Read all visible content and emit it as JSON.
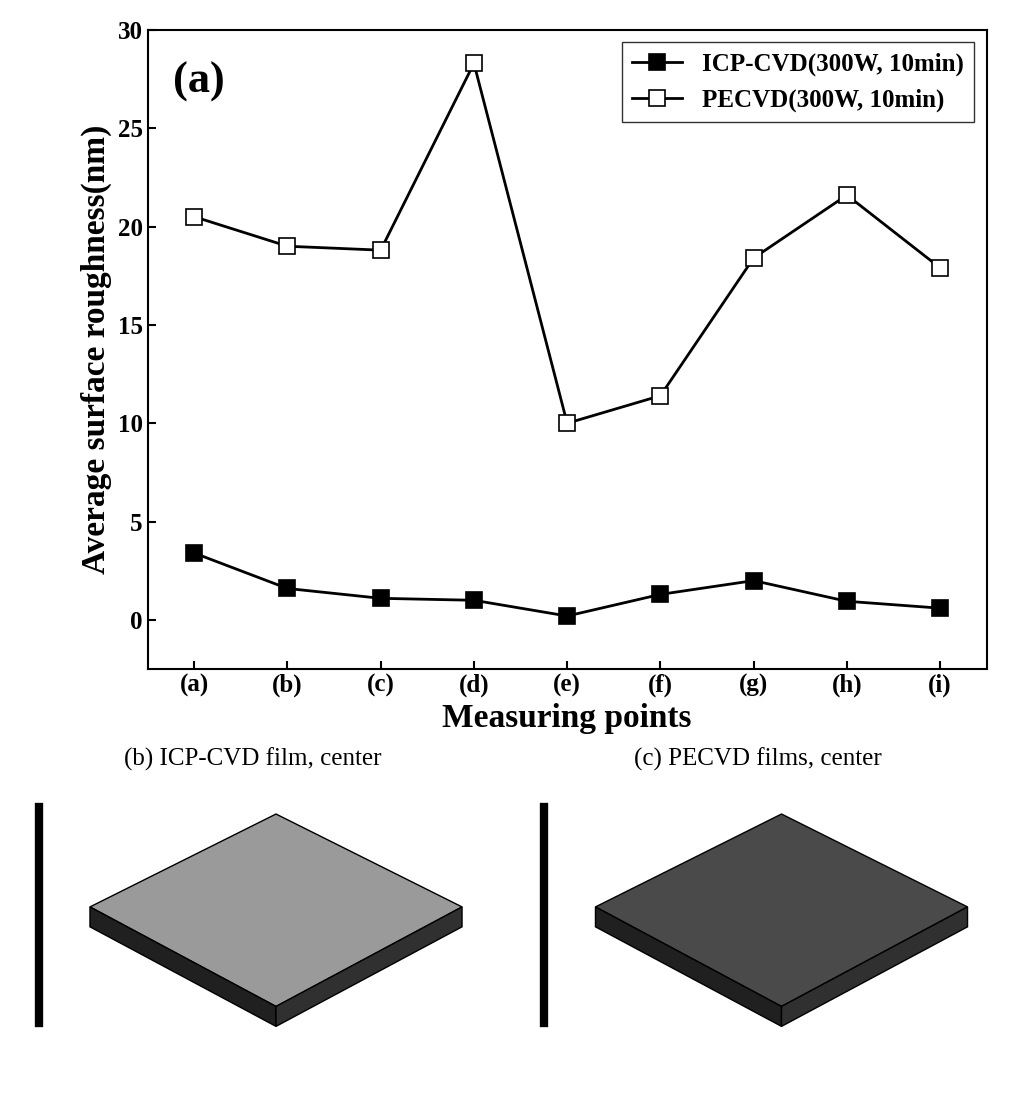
{
  "chart_data": [
    {
      "type": "line",
      "title": "(a)",
      "x_label": "Measuring points",
      "y_label": "Average surface roughness(nm)",
      "categories": [
        "(a)",
        "(b)",
        "(c)",
        "(d)",
        "(e)",
        "(f)",
        "(g)",
        "(h)",
        "(i)"
      ],
      "series": [
        {
          "name": "ICP-CVD(300W, 10min)",
          "color": "#000000",
          "marker": "filled_square",
          "line_style": "solid",
          "values": [
            3.4,
            1.6,
            1.1,
            1.0,
            0.2,
            1.3,
            2.0,
            0.95,
            0.6
          ]
        },
        {
          "name": "PECVD(300W, 10min)",
          "color": "#000000",
          "marker": "open_square",
          "line_style": "solid",
          "values": [
            20.5,
            19.0,
            18.8,
            28.3,
            10.0,
            11.4,
            18.4,
            21.6,
            17.9
          ]
        }
      ],
      "ylim": [
        -2.5,
        30
      ],
      "yticks": [
        0,
        5,
        10,
        15,
        20,
        25,
        30
      ],
      "legend": "upper right",
      "grid": false
    },
    {
      "type": "image",
      "title": "(b) ICP-CVD film, center"
    },
    {
      "type": "image",
      "title": "(c) PECVD films, center"
    }
  ]
}
